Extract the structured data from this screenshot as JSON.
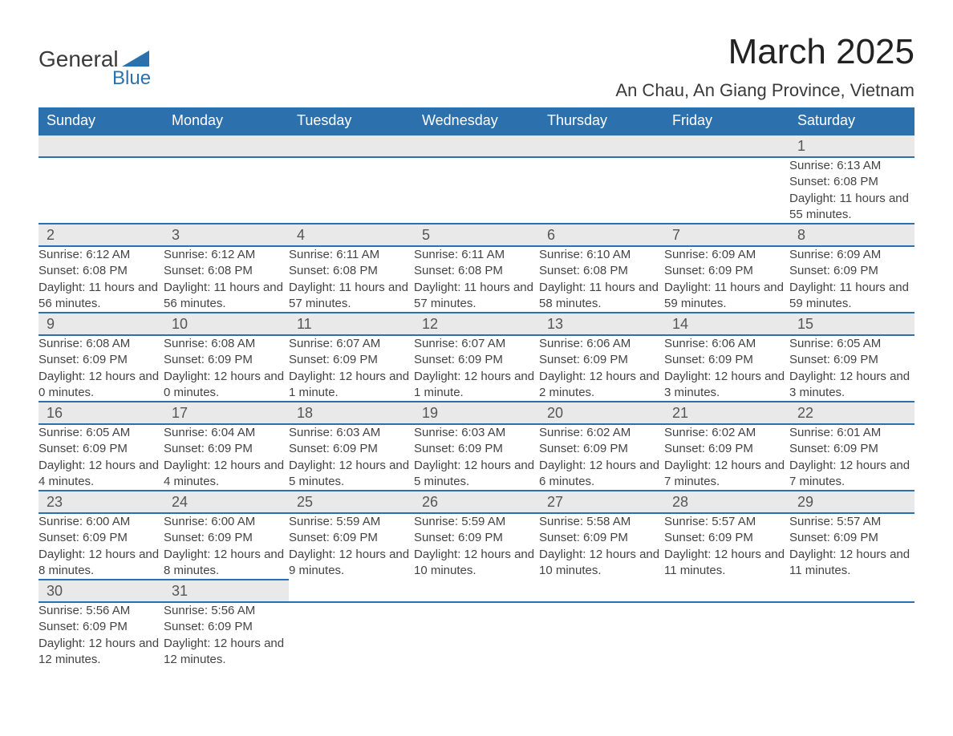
{
  "brand": {
    "name1": "General",
    "name2": "Blue",
    "accent": "#2c71ad"
  },
  "title": "March 2025",
  "location": "An Chau, An Giang Province, Vietnam",
  "colors": {
    "header_bg": "#2c71ad",
    "header_text": "#ffffff",
    "daynum_bg": "#e9e9e9",
    "row_border": "#2c71ad",
    "body_text": "#444444",
    "page_bg": "#ffffff"
  },
  "fonts": {
    "title_size_pt": 33,
    "location_size_pt": 16,
    "header_size_pt": 13,
    "daynum_size_pt": 13,
    "detail_size_pt": 11
  },
  "dow": [
    "Sunday",
    "Monday",
    "Tuesday",
    "Wednesday",
    "Thursday",
    "Friday",
    "Saturday"
  ],
  "weeks": [
    [
      null,
      null,
      null,
      null,
      null,
      null,
      {
        "d": "1",
        "sr": "Sunrise: 6:13 AM",
        "ss": "Sunset: 6:08 PM",
        "dl": "Daylight: 11 hours and 55 minutes."
      }
    ],
    [
      {
        "d": "2",
        "sr": "Sunrise: 6:12 AM",
        "ss": "Sunset: 6:08 PM",
        "dl": "Daylight: 11 hours and 56 minutes."
      },
      {
        "d": "3",
        "sr": "Sunrise: 6:12 AM",
        "ss": "Sunset: 6:08 PM",
        "dl": "Daylight: 11 hours and 56 minutes."
      },
      {
        "d": "4",
        "sr": "Sunrise: 6:11 AM",
        "ss": "Sunset: 6:08 PM",
        "dl": "Daylight: 11 hours and 57 minutes."
      },
      {
        "d": "5",
        "sr": "Sunrise: 6:11 AM",
        "ss": "Sunset: 6:08 PM",
        "dl": "Daylight: 11 hours and 57 minutes."
      },
      {
        "d": "6",
        "sr": "Sunrise: 6:10 AM",
        "ss": "Sunset: 6:08 PM",
        "dl": "Daylight: 11 hours and 58 minutes."
      },
      {
        "d": "7",
        "sr": "Sunrise: 6:09 AM",
        "ss": "Sunset: 6:09 PM",
        "dl": "Daylight: 11 hours and 59 minutes."
      },
      {
        "d": "8",
        "sr": "Sunrise: 6:09 AM",
        "ss": "Sunset: 6:09 PM",
        "dl": "Daylight: 11 hours and 59 minutes."
      }
    ],
    [
      {
        "d": "9",
        "sr": "Sunrise: 6:08 AM",
        "ss": "Sunset: 6:09 PM",
        "dl": "Daylight: 12 hours and 0 minutes."
      },
      {
        "d": "10",
        "sr": "Sunrise: 6:08 AM",
        "ss": "Sunset: 6:09 PM",
        "dl": "Daylight: 12 hours and 0 minutes."
      },
      {
        "d": "11",
        "sr": "Sunrise: 6:07 AM",
        "ss": "Sunset: 6:09 PM",
        "dl": "Daylight: 12 hours and 1 minute."
      },
      {
        "d": "12",
        "sr": "Sunrise: 6:07 AM",
        "ss": "Sunset: 6:09 PM",
        "dl": "Daylight: 12 hours and 1 minute."
      },
      {
        "d": "13",
        "sr": "Sunrise: 6:06 AM",
        "ss": "Sunset: 6:09 PM",
        "dl": "Daylight: 12 hours and 2 minutes."
      },
      {
        "d": "14",
        "sr": "Sunrise: 6:06 AM",
        "ss": "Sunset: 6:09 PM",
        "dl": "Daylight: 12 hours and 3 minutes."
      },
      {
        "d": "15",
        "sr": "Sunrise: 6:05 AM",
        "ss": "Sunset: 6:09 PM",
        "dl": "Daylight: 12 hours and 3 minutes."
      }
    ],
    [
      {
        "d": "16",
        "sr": "Sunrise: 6:05 AM",
        "ss": "Sunset: 6:09 PM",
        "dl": "Daylight: 12 hours and 4 minutes."
      },
      {
        "d": "17",
        "sr": "Sunrise: 6:04 AM",
        "ss": "Sunset: 6:09 PM",
        "dl": "Daylight: 12 hours and 4 minutes."
      },
      {
        "d": "18",
        "sr": "Sunrise: 6:03 AM",
        "ss": "Sunset: 6:09 PM",
        "dl": "Daylight: 12 hours and 5 minutes."
      },
      {
        "d": "19",
        "sr": "Sunrise: 6:03 AM",
        "ss": "Sunset: 6:09 PM",
        "dl": "Daylight: 12 hours and 5 minutes."
      },
      {
        "d": "20",
        "sr": "Sunrise: 6:02 AM",
        "ss": "Sunset: 6:09 PM",
        "dl": "Daylight: 12 hours and 6 minutes."
      },
      {
        "d": "21",
        "sr": "Sunrise: 6:02 AM",
        "ss": "Sunset: 6:09 PM",
        "dl": "Daylight: 12 hours and 7 minutes."
      },
      {
        "d": "22",
        "sr": "Sunrise: 6:01 AM",
        "ss": "Sunset: 6:09 PM",
        "dl": "Daylight: 12 hours and 7 minutes."
      }
    ],
    [
      {
        "d": "23",
        "sr": "Sunrise: 6:00 AM",
        "ss": "Sunset: 6:09 PM",
        "dl": "Daylight: 12 hours and 8 minutes."
      },
      {
        "d": "24",
        "sr": "Sunrise: 6:00 AM",
        "ss": "Sunset: 6:09 PM",
        "dl": "Daylight: 12 hours and 8 minutes."
      },
      {
        "d": "25",
        "sr": "Sunrise: 5:59 AM",
        "ss": "Sunset: 6:09 PM",
        "dl": "Daylight: 12 hours and 9 minutes."
      },
      {
        "d": "26",
        "sr": "Sunrise: 5:59 AM",
        "ss": "Sunset: 6:09 PM",
        "dl": "Daylight: 12 hours and 10 minutes."
      },
      {
        "d": "27",
        "sr": "Sunrise: 5:58 AM",
        "ss": "Sunset: 6:09 PM",
        "dl": "Daylight: 12 hours and 10 minutes."
      },
      {
        "d": "28",
        "sr": "Sunrise: 5:57 AM",
        "ss": "Sunset: 6:09 PM",
        "dl": "Daylight: 12 hours and 11 minutes."
      },
      {
        "d": "29",
        "sr": "Sunrise: 5:57 AM",
        "ss": "Sunset: 6:09 PM",
        "dl": "Daylight: 12 hours and 11 minutes."
      }
    ],
    [
      {
        "d": "30",
        "sr": "Sunrise: 5:56 AM",
        "ss": "Sunset: 6:09 PM",
        "dl": "Daylight: 12 hours and 12 minutes."
      },
      {
        "d": "31",
        "sr": "Sunrise: 5:56 AM",
        "ss": "Sunset: 6:09 PM",
        "dl": "Daylight: 12 hours and 12 minutes."
      },
      null,
      null,
      null,
      null,
      null
    ]
  ]
}
